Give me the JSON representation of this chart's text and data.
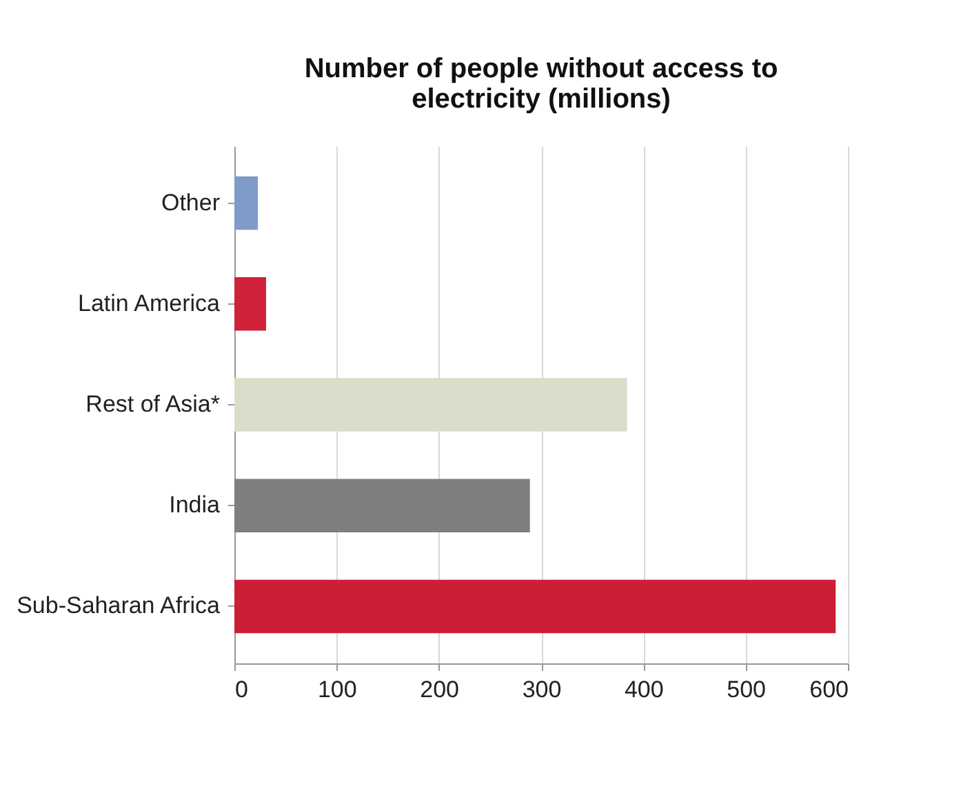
{
  "chart_data": {
    "type": "bar",
    "orientation": "horizontal",
    "title": "Number of people without access to electricity (millions)",
    "categories": [
      "Other",
      "Latin America",
      "Rest of Asia*",
      "India",
      "Sub-Saharan Africa"
    ],
    "values": [
      23,
      31,
      384,
      289,
      588
    ],
    "colors": [
      "#7f9cc8",
      "#d0213a",
      "#dcdccb",
      "#7f7f7f",
      "#cc1f36"
    ],
    "xlim": [
      0,
      600
    ],
    "xticks": [
      0,
      100,
      200,
      300,
      400,
      500,
      600
    ],
    "grid": "x"
  }
}
